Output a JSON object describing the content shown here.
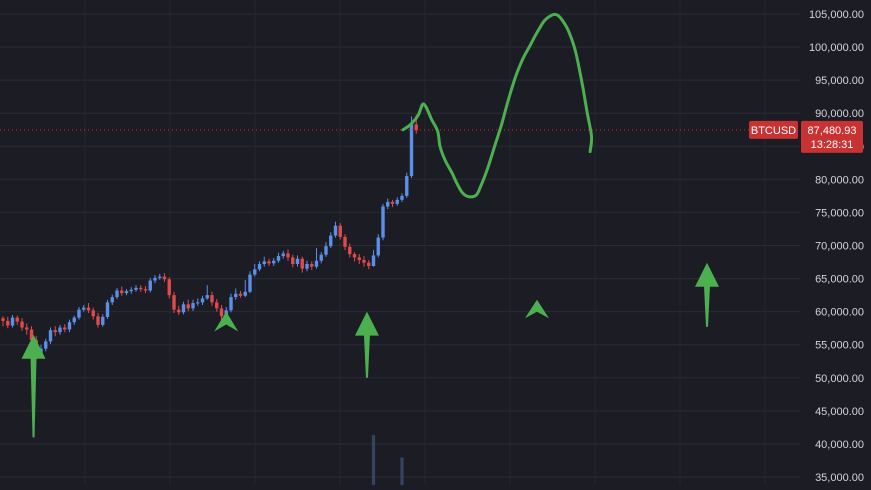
{
  "chart_data": {
    "type": "candlestick",
    "symbol": "BTCUSD",
    "last_price": "87,480.93",
    "countdown": "13:28:31",
    "y_axis": {
      "ticks": [
        "105,000.00",
        "100,000.00",
        "95,000.00",
        "90,000.00",
        "85,000.00",
        "80,000.00",
        "75,000.00",
        "70,000.00",
        "65,000.00",
        "60,000.00",
        "55,000.00",
        "50,000.00",
        "45,000.00",
        "40,000.00",
        "35,000.00"
      ],
      "tick_values": [
        105000,
        100000,
        95000,
        90000,
        85000,
        80000,
        75000,
        70000,
        65000,
        60000,
        55000,
        50000,
        45000,
        40000,
        35000
      ],
      "range": [
        35000,
        106000
      ]
    },
    "grid": true,
    "colors": {
      "background": "#1c1d24",
      "up": "#5b8fe8",
      "down": "#e04a4a",
      "annotation": "#4caf50",
      "price_tag": "#c83232",
      "axis_text": "#d1d4dc"
    },
    "candles": [
      [
        59000,
        58600,
        59300,
        57800
      ],
      [
        58600,
        57900,
        59200,
        57500
      ],
      [
        57900,
        59100,
        59500,
        57600
      ],
      [
        59100,
        58500,
        59400,
        58000
      ],
      [
        58500,
        57600,
        59000,
        57100
      ],
      [
        57600,
        57300,
        58200,
        56500
      ],
      [
        57300,
        55700,
        57800,
        55000
      ],
      [
        55700,
        53500,
        56300,
        52800
      ],
      [
        53500,
        54400,
        55000,
        53000
      ],
      [
        54400,
        55500,
        55900,
        54000
      ],
      [
        55500,
        57200,
        57600,
        55100
      ],
      [
        57200,
        56900,
        57800,
        56300
      ],
      [
        56900,
        57600,
        58000,
        56500
      ],
      [
        57600,
        57300,
        58100,
        56900
      ],
      [
        57300,
        58400,
        58800,
        56900
      ],
      [
        58400,
        59100,
        59400,
        58000
      ],
      [
        59100,
        60300,
        60700,
        58800
      ],
      [
        60300,
        60600,
        61000,
        60000
      ],
      [
        60600,
        60200,
        61300,
        59800
      ],
      [
        60200,
        59300,
        60600,
        58800
      ],
      [
        59300,
        58000,
        59800,
        57600
      ],
      [
        58000,
        59200,
        59600,
        57700
      ],
      [
        59200,
        61400,
        61800,
        58900
      ],
      [
        61400,
        62200,
        62600,
        61000
      ],
      [
        62200,
        63200,
        63600,
        61900
      ],
      [
        63200,
        62800,
        63800,
        62400
      ],
      [
        62800,
        63100,
        63400,
        62500
      ],
      [
        63100,
        63300,
        63700,
        62700
      ],
      [
        63300,
        63600,
        64000,
        63000
      ],
      [
        63600,
        63400,
        64000,
        63000
      ],
      [
        63400,
        63200,
        63900,
        62800
      ],
      [
        63200,
        64700,
        65100,
        62900
      ],
      [
        64700,
        65100,
        65500,
        64300
      ],
      [
        65100,
        65300,
        65700,
        64800
      ],
      [
        65300,
        64900,
        65800,
        64500
      ],
      [
        64900,
        62500,
        65200,
        62000
      ],
      [
        62500,
        60300,
        63000,
        59800
      ],
      [
        60300,
        59900,
        60900,
        59500
      ],
      [
        59900,
        61100,
        61500,
        59600
      ],
      [
        61100,
        60500,
        61800,
        60100
      ],
      [
        60500,
        61300,
        61800,
        60100
      ],
      [
        61300,
        61400,
        62000,
        60900
      ],
      [
        61400,
        62000,
        62400,
        61000
      ],
      [
        62000,
        62500,
        64000,
        61800
      ],
      [
        62500,
        61400,
        63000,
        60900
      ],
      [
        61400,
        60500,
        61900,
        60000
      ],
      [
        60500,
        59300,
        61000,
        58700
      ],
      [
        59300,
        60200,
        60700,
        58900
      ],
      [
        60200,
        62200,
        62700,
        59900
      ],
      [
        62200,
        62700,
        63500,
        61800
      ],
      [
        62700,
        62400,
        63100,
        62100
      ],
      [
        62400,
        63000,
        64800,
        62200
      ],
      [
        63000,
        65600,
        66100,
        62800
      ],
      [
        65600,
        66400,
        67200,
        65300
      ],
      [
        66400,
        67200,
        67600,
        66100
      ],
      [
        67200,
        67600,
        68300,
        66800
      ],
      [
        67600,
        67300,
        68000,
        66900
      ],
      [
        67300,
        67700,
        68100,
        66900
      ],
      [
        67700,
        68400,
        68900,
        67400
      ],
      [
        68400,
        68800,
        69200,
        68000
      ],
      [
        68800,
        68200,
        69400,
        67700
      ],
      [
        68200,
        67200,
        68600,
        66700
      ],
      [
        67200,
        68000,
        68500,
        66800
      ],
      [
        68000,
        66500,
        68300,
        65900
      ],
      [
        66500,
        67200,
        67700,
        66100
      ],
      [
        67200,
        66800,
        67600,
        66300
      ],
      [
        66800,
        67700,
        69600,
        66500
      ],
      [
        67700,
        68600,
        69000,
        67300
      ],
      [
        68600,
        69900,
        70500,
        68300
      ],
      [
        69900,
        71500,
        72000,
        69600
      ],
      [
        71500,
        73000,
        73600,
        71200
      ],
      [
        73000,
        71300,
        73400,
        70900
      ],
      [
        71300,
        69800,
        71700,
        69300
      ],
      [
        69800,
        68700,
        70300,
        68200
      ],
      [
        68700,
        68200,
        69000,
        67600
      ],
      [
        68200,
        67800,
        68700,
        67200
      ],
      [
        67800,
        67400,
        68400,
        66800
      ],
      [
        67400,
        66900,
        67800,
        66400
      ],
      [
        66900,
        68500,
        69300,
        66800
      ],
      [
        68500,
        71200,
        71700,
        68200
      ],
      [
        71200,
        75900,
        76300,
        70800
      ],
      [
        75900,
        76600,
        77100,
        75500
      ],
      [
        76600,
        76300,
        76900,
        75800
      ],
      [
        76300,
        76900,
        77300,
        76000
      ],
      [
        76900,
        77500,
        77900,
        76600
      ],
      [
        77500,
        80500,
        81000,
        77200
      ],
      [
        80500,
        88300,
        89500,
        80200
      ],
      [
        88300,
        87400,
        89800,
        86900
      ]
    ],
    "volume_bars": [
      {
        "index": 78,
        "value": 1.0
      },
      {
        "index": 84,
        "value": 0.55
      }
    ],
    "annotations": {
      "forecast_path": [
        [
          84200,
          87500
        ],
        [
          85800,
          88300
        ],
        [
          87400,
          89700
        ],
        [
          88300,
          91300
        ],
        [
          89000,
          91000
        ],
        [
          90200,
          89100
        ],
        [
          91500,
          87300
        ],
        [
          92000,
          85000
        ],
        [
          93000,
          83000
        ],
        [
          94500,
          81000
        ],
        [
          95500,
          79500
        ],
        [
          96700,
          78000
        ],
        [
          98000,
          77400
        ],
        [
          99600,
          77600
        ],
        [
          100600,
          79000
        ],
        [
          102000,
          81600
        ],
        [
          103500,
          85000
        ],
        [
          105000,
          88400
        ],
        [
          106500,
          92300
        ],
        [
          108000,
          95700
        ],
        [
          109500,
          98300
        ],
        [
          111000,
          100300
        ],
        [
          112500,
          102300
        ],
        [
          114000,
          104000
        ],
        [
          115500,
          104800
        ],
        [
          116500,
          104900
        ],
        [
          117500,
          104300
        ],
        [
          119000,
          102500
        ],
        [
          120500,
          99400
        ],
        [
          122000,
          94200
        ],
        [
          123000,
          90000
        ],
        [
          123900,
          86500
        ],
        [
          123600,
          84200
        ]
      ],
      "arrows": [
        {
          "kind": "arrow-up",
          "x_frac": 0.0385,
          "y_top": 56500,
          "y_bottom": 41000
        },
        {
          "kind": "triangle-up",
          "x_frac": 0.2597,
          "y_top": 60000,
          "y_bottom": 57000
        },
        {
          "kind": "arrow-up",
          "x_frac": 0.4213,
          "y_top": 60000,
          "y_bottom": 50000
        },
        {
          "kind": "triangle-up",
          "x_frac": 0.6165,
          "y_top": 61800,
          "y_bottom": 59000
        },
        {
          "kind": "arrow-up",
          "x_frac": 0.8117,
          "y_top": 67400,
          "y_bottom": 57700
        }
      ]
    }
  }
}
